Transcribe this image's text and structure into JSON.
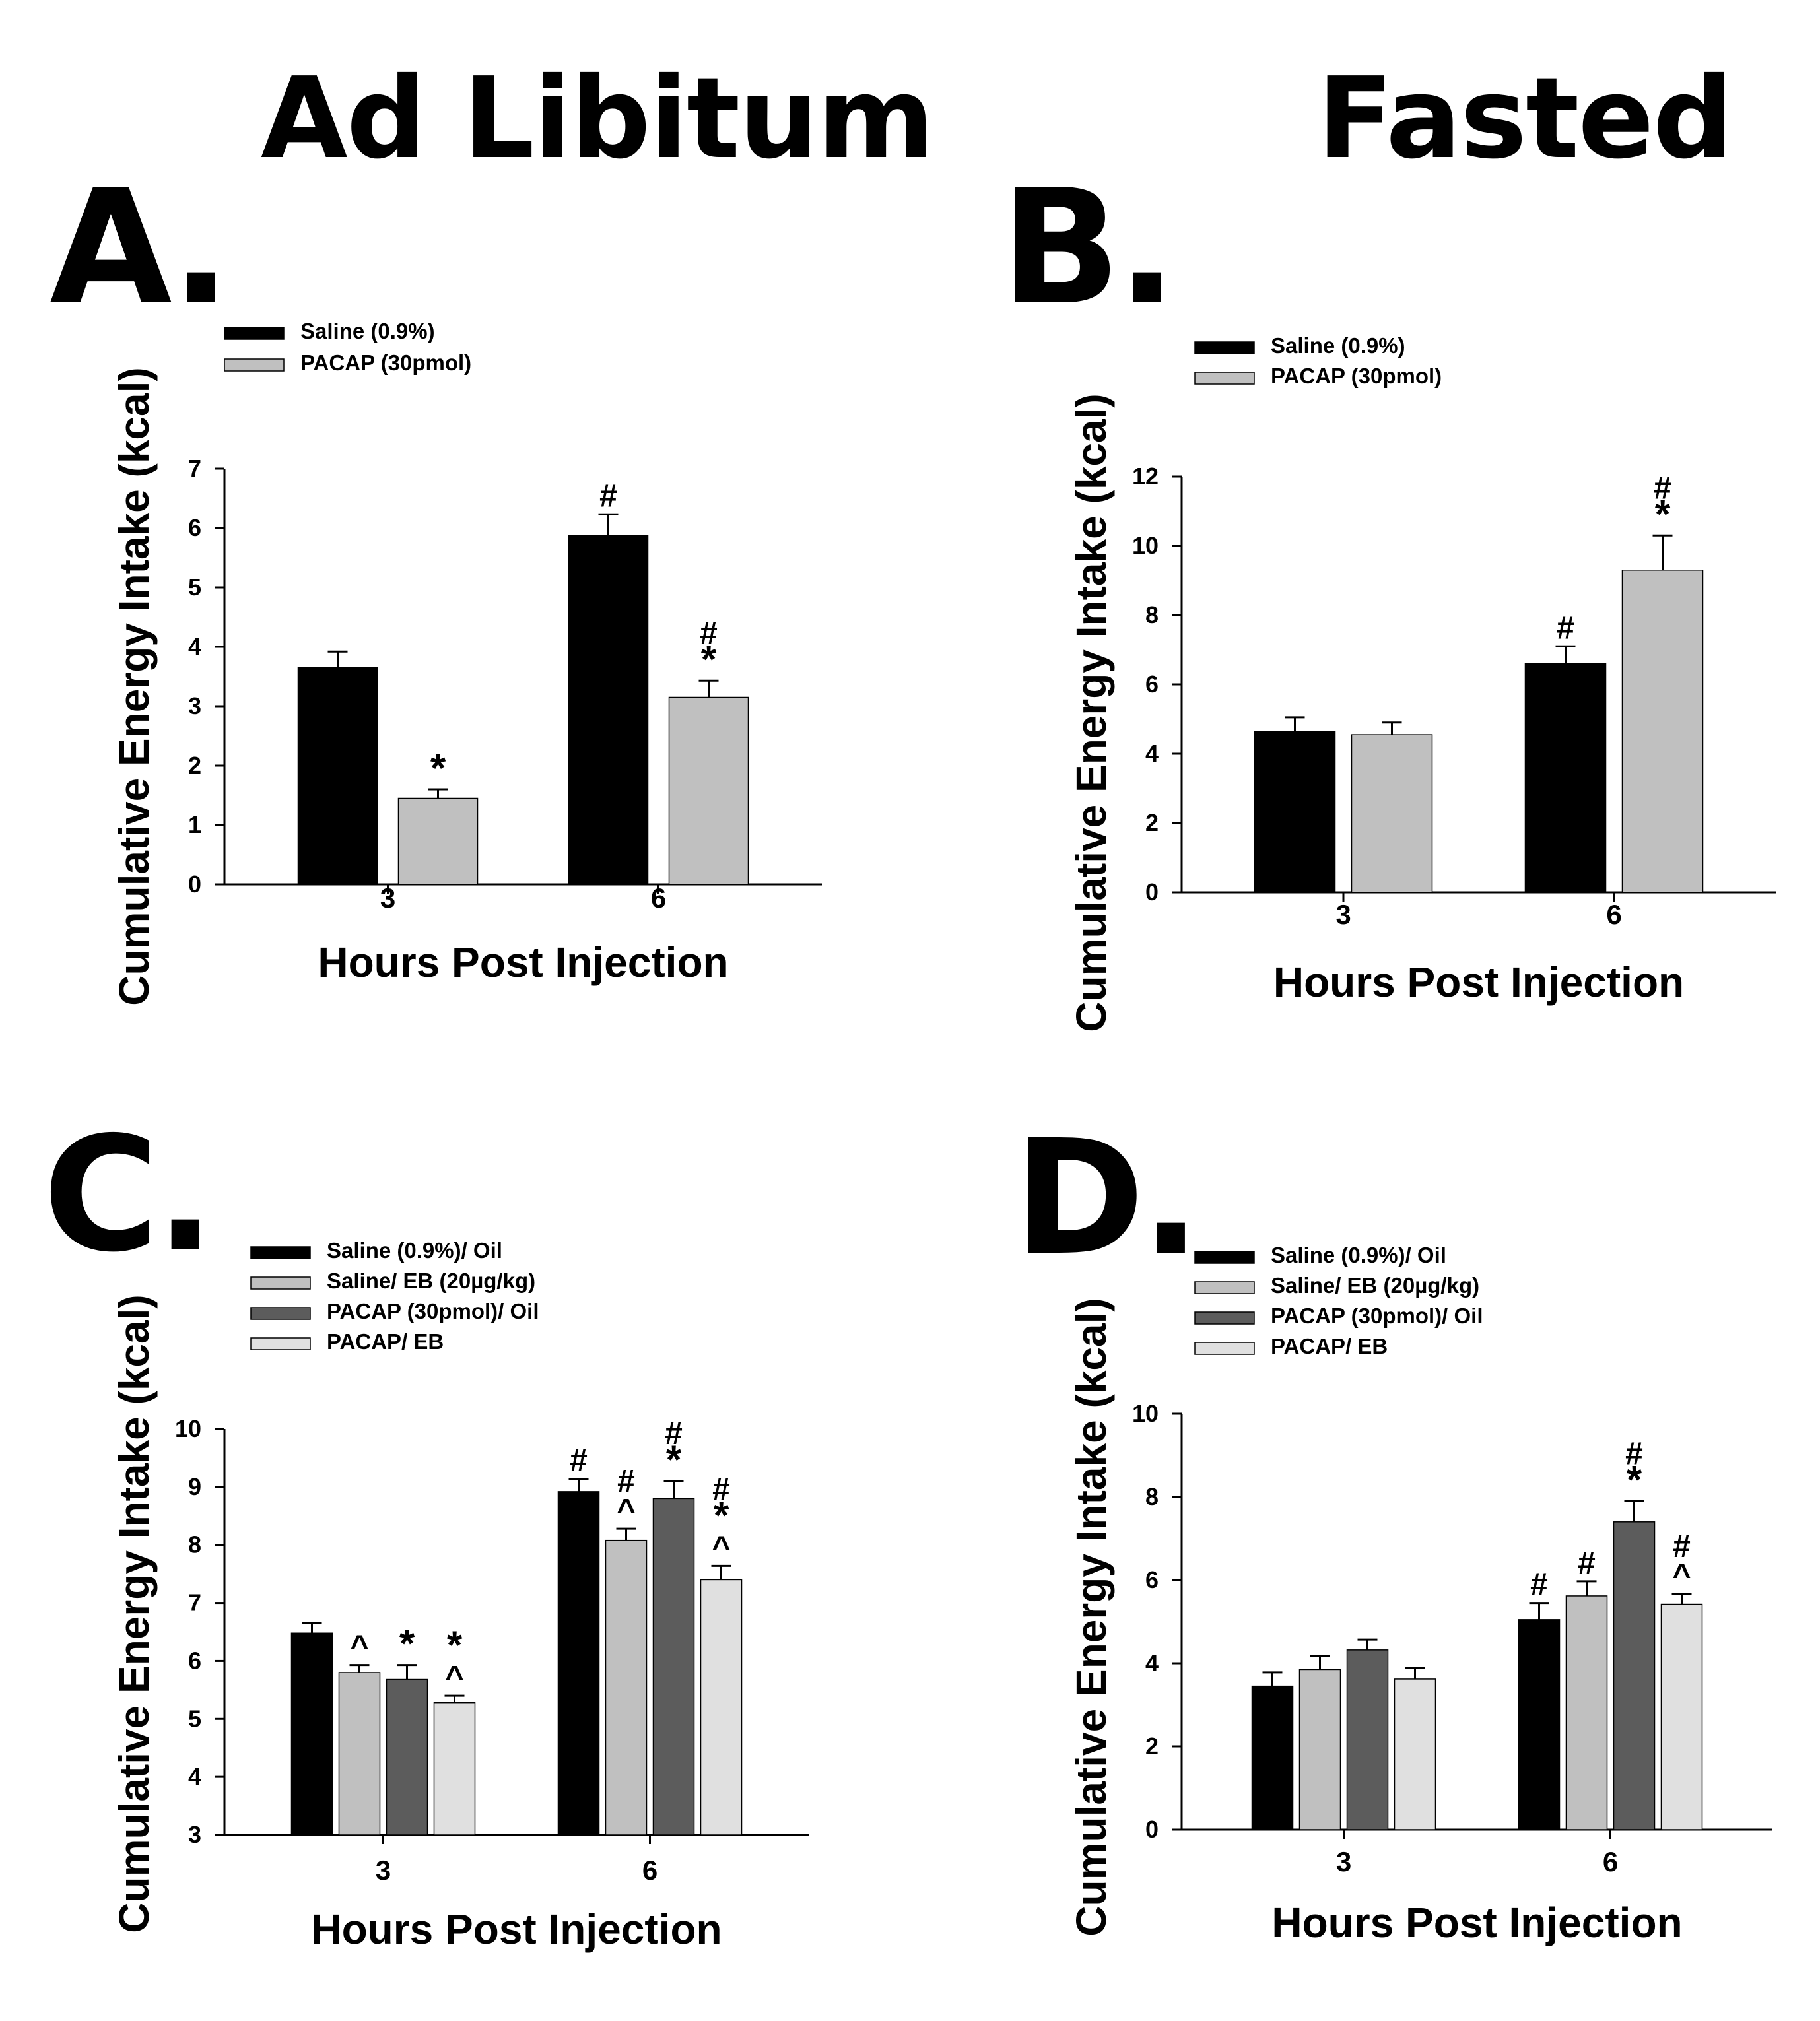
{
  "headings": {
    "left": "Ad Libitum",
    "right": "Fasted"
  },
  "panel_labels": [
    "A.",
    "B.",
    "C.",
    "D."
  ],
  "colors": {
    "black": "#000000",
    "light_gray": "#c0c0c0",
    "dark_gray": "#5c5c5c",
    "pale_gray": "#e0e0e0"
  },
  "chart_data": [
    {
      "panel": "A.",
      "type": "bar",
      "xlabel": "Hours Post Injection",
      "ylabel": "Cumulative  Energy Intake (kcal)",
      "categories": [
        "3",
        "6"
      ],
      "ylim": [
        0,
        7
      ],
      "yticks": [
        0,
        1,
        2,
        3,
        4,
        5,
        6,
        7
      ],
      "series": [
        {
          "name": "Saline (0.9%)",
          "color": "#000000",
          "values": [
            3.65,
            5.88
          ],
          "errors": [
            0.27,
            0.35
          ],
          "annotations": [
            "",
            "#"
          ]
        },
        {
          "name": "PACAP (30pmol)",
          "color": "#c0c0c0",
          "values": [
            1.45,
            3.15
          ],
          "errors": [
            0.15,
            0.28
          ],
          "annotations": [
            "*",
            "#\n*"
          ]
        }
      ]
    },
    {
      "panel": "B.",
      "type": "bar",
      "xlabel": "Hours Post Injection",
      "ylabel": "Cumulative  Energy Intake (kcal)",
      "categories": [
        "3",
        "6"
      ],
      "ylim": [
        0,
        12
      ],
      "yticks": [
        0,
        2,
        4,
        6,
        8,
        10,
        12
      ],
      "series": [
        {
          "name": "Saline (0.9%)",
          "color": "#000000",
          "values": [
            4.65,
            6.6
          ],
          "errors": [
            0.4,
            0.5
          ],
          "annotations": [
            "",
            "#"
          ]
        },
        {
          "name": "PACAP (30pmol)",
          "color": "#c0c0c0",
          "values": [
            4.55,
            9.3
          ],
          "errors": [
            0.35,
            1.0
          ],
          "annotations": [
            "",
            "#\n*"
          ]
        }
      ]
    },
    {
      "panel": "C.",
      "type": "bar",
      "xlabel": "Hours Post Injection",
      "ylabel": "Cumulative  Energy Intake (kcal)",
      "categories": [
        "3",
        "6"
      ],
      "ylim": [
        3,
        10
      ],
      "yticks": [
        3,
        4,
        5,
        6,
        7,
        8,
        9,
        10
      ],
      "series": [
        {
          "name": "Saline (0.9%)/ Oil",
          "color": "#000000",
          "values": [
            6.48,
            8.92
          ],
          "errors": [
            0.17,
            0.22
          ],
          "annotations": [
            "",
            "#"
          ]
        },
        {
          "name": "Saline/ EB (20µg/kg)",
          "color": "#c0c0c0",
          "values": [
            5.8,
            8.08
          ],
          "errors": [
            0.13,
            0.2
          ],
          "annotations": [
            "^",
            "#\n^"
          ]
        },
        {
          "name": "PACAP (30pmol)/ Oil",
          "color": "#5c5c5c",
          "values": [
            5.68,
            8.8
          ],
          "errors": [
            0.25,
            0.3
          ],
          "annotations": [
            "*",
            "#\n*"
          ]
        },
        {
          "name": "PACAP/ EB",
          "color": "#e0e0e0",
          "values": [
            5.28,
            7.4
          ],
          "errors": [
            0.12,
            0.24
          ],
          "annotations": [
            "*\n^",
            "#\n*\n^"
          ]
        }
      ]
    },
    {
      "panel": "D.",
      "type": "bar",
      "xlabel": "Hours Post Injection",
      "ylabel": "Cumulative  Energy Intake (kcal)",
      "categories": [
        "3",
        "6"
      ],
      "ylim": [
        0,
        10
      ],
      "yticks": [
        0,
        2,
        4,
        6,
        8,
        10
      ],
      "series": [
        {
          "name": "Saline (0.9%)/ Oil",
          "color": "#000000",
          "values": [
            3.45,
            5.05
          ],
          "errors": [
            0.33,
            0.4
          ],
          "annotations": [
            "",
            "#"
          ]
        },
        {
          "name": "Saline/ EB (20µg/kg)",
          "color": "#c0c0c0",
          "values": [
            3.85,
            5.62
          ],
          "errors": [
            0.33,
            0.35
          ],
          "annotations": [
            "",
            "#"
          ]
        },
        {
          "name": "PACAP (30pmol)/ Oil",
          "color": "#5c5c5c",
          "values": [
            4.32,
            7.4
          ],
          "errors": [
            0.25,
            0.5
          ],
          "annotations": [
            "",
            "#\n*"
          ]
        },
        {
          "name": "PACAP/ EB",
          "color": "#e0e0e0",
          "values": [
            3.62,
            5.42
          ],
          "errors": [
            0.27,
            0.25
          ],
          "annotations": [
            "",
            "#\n^"
          ]
        }
      ]
    }
  ]
}
